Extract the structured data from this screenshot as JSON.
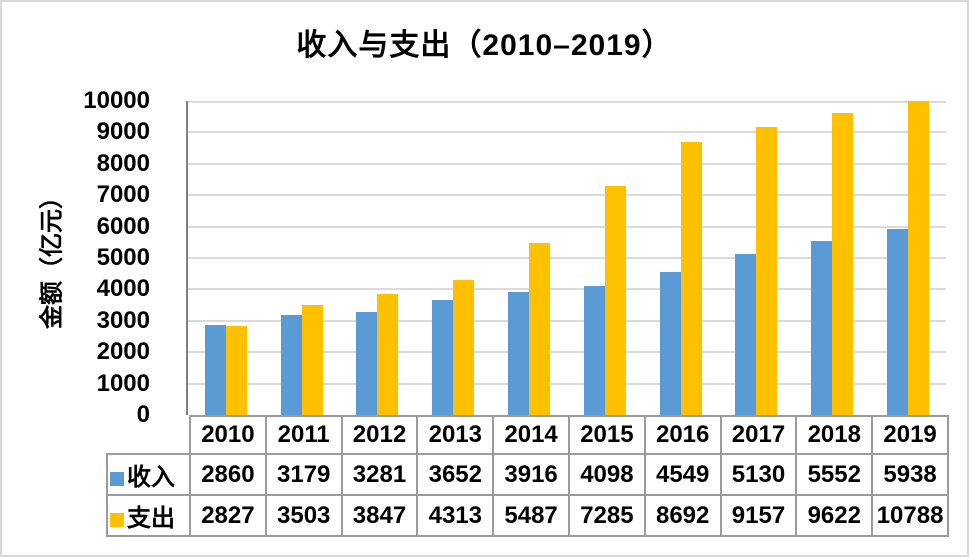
{
  "chart_data": {
    "type": "bar",
    "title": "收入与支出（2010–2019）",
    "ylabel": "金额（亿元）",
    "xlabel": "",
    "categories": [
      "2010",
      "2011",
      "2012",
      "2013",
      "2014",
      "2015",
      "2016",
      "2017",
      "2018",
      "2019"
    ],
    "series": [
      {
        "name": "收入",
        "color": "#5B9BD5",
        "values": [
          2860,
          3179,
          3281,
          3652,
          3916,
          4098,
          4549,
          5130,
          5552,
          5938
        ]
      },
      {
        "name": "支出",
        "color": "#FFC000",
        "values": [
          2827,
          3503,
          3847,
          4313,
          5487,
          7285,
          8692,
          9157,
          9622,
          10788
        ]
      }
    ],
    "ylim": [
      0,
      10000
    ],
    "ytick_step": 1000,
    "ytick_labels": [
      "0",
      "1000",
      "2000",
      "3000",
      "4000",
      "5000",
      "6000",
      "7000",
      "8000",
      "9000",
      "10000"
    ],
    "grid": "horizontal",
    "legend_position": "table-left-column",
    "bars_clipped_at_ymax": true,
    "colors": {
      "income_bar": "#5B9BD5",
      "expense_bar": "#FFC000",
      "gridline": "#dadada",
      "axis_line": "#808080",
      "table_border": "#9b9b9b",
      "text": "#000000",
      "frame_border": "#d9d9d9",
      "background": "#ffffff"
    }
  }
}
